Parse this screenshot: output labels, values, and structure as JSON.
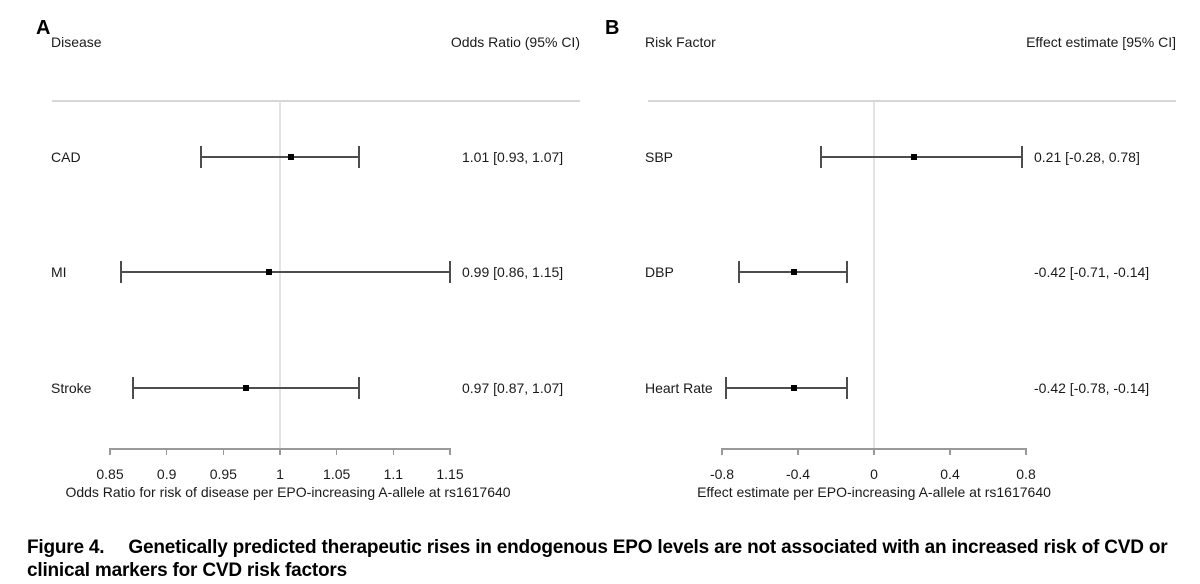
{
  "caption": {
    "label": "Figure 4.",
    "text": "Genetically predicted therapeutic rises in endogenous EPO levels are not associated with an increased risk of CVD or clinical markers for CVD risk factors"
  },
  "colors": {
    "text": "#1a1a1a",
    "ci_line": "#4d4d4d",
    "point": "#000000",
    "reference_line": "#e3e3e3",
    "axis_line": "#999999",
    "header_rule": "#d6d6d6"
  },
  "chart_data": [
    {
      "type": "forest",
      "panel": "A",
      "left_header": "Disease",
      "right_header": "Odds Ratio (95% CI)",
      "reference_value": 1,
      "rows": [
        {
          "label": "CAD",
          "estimate": 1.01,
          "ci_low": 0.93,
          "ci_high": 1.07,
          "value_text": "1.01 [0.93, 1.07]"
        },
        {
          "label": "MI",
          "estimate": 0.99,
          "ci_low": 0.86,
          "ci_high": 1.15,
          "value_text": "0.99 [0.86, 1.15]"
        },
        {
          "label": "Stroke",
          "estimate": 0.97,
          "ci_low": 0.87,
          "ci_high": 1.07,
          "value_text": "0.97 [0.87, 1.07]"
        }
      ],
      "axis": {
        "min": 0.85,
        "max": 1.15,
        "ticks": [
          0.85,
          0.9,
          0.95,
          1,
          1.05,
          1.1,
          1.15
        ],
        "tick_labels": [
          "0.85",
          "0.9",
          "0.95",
          "1",
          "1.05",
          "1.1",
          "1.15"
        ],
        "title": "Odds Ratio for risk of disease per EPO-increasing A-allele at rs1617640"
      }
    },
    {
      "type": "forest",
      "panel": "B",
      "left_header": "Risk Factor",
      "right_header": "Effect estimate [95% CI]",
      "reference_value": 0,
      "rows": [
        {
          "label": "SBP",
          "estimate": 0.21,
          "ci_low": -0.28,
          "ci_high": 0.78,
          "value_text": "0.21 [-0.28, 0.78]"
        },
        {
          "label": "DBP",
          "estimate": -0.42,
          "ci_low": -0.71,
          "ci_high": -0.14,
          "value_text": "-0.42 [-0.71, -0.14]"
        },
        {
          "label": "Heart Rate",
          "estimate": -0.42,
          "ci_low": -0.78,
          "ci_high": -0.14,
          "value_text": "-0.42 [-0.78, -0.14]"
        }
      ],
      "axis": {
        "min": -0.8,
        "max": 0.8,
        "ticks": [
          -0.8,
          -0.4,
          0,
          0.4,
          0.8
        ],
        "tick_labels": [
          "-0.8",
          "-0.4",
          "0",
          "0.4",
          "0.8"
        ],
        "title": "Effect estimate per EPO-increasing A-allele at rs1617640"
      }
    }
  ]
}
